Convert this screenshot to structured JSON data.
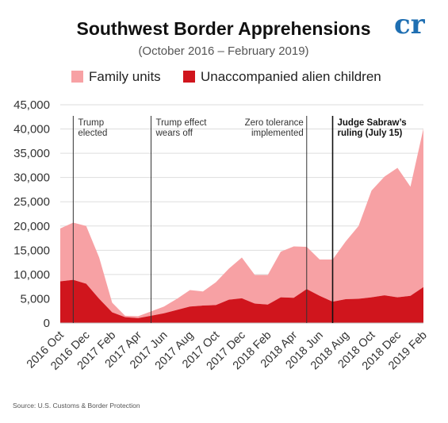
{
  "chart_data": {
    "type": "area",
    "title": "Southwest Border Apprehensions",
    "subtitle": "(October 2016 – February 2019)",
    "ylim": [
      0,
      45000
    ],
    "yticks": [
      "0",
      "5,000",
      "10,000",
      "15,000",
      "20,000",
      "25,000",
      "30,000",
      "35,000",
      "40,000",
      "45,000"
    ],
    "ytick_values": [
      0,
      5000,
      10000,
      15000,
      20000,
      25000,
      30000,
      35000,
      40000,
      45000
    ],
    "grid": "horizontal",
    "stacked": true,
    "x": [
      "2016 Oct",
      "2016 Nov",
      "2016 Dec",
      "2017 Jan",
      "2017 Feb",
      "2017 Mar",
      "2017 Apr",
      "2017 May",
      "2017 Jun",
      "2017 Jul",
      "2017 Aug",
      "2017 Sep",
      "2017 Oct",
      "2017 Nov",
      "2017 Dec",
      "2018 Jan",
      "2018 Feb",
      "2018 Mar",
      "2018 Apr",
      "2018 May",
      "2018 Jun",
      "2018 Jul",
      "2018 Aug",
      "2018 Sep",
      "2018 Oct",
      "2018 Nov",
      "2018 Dec",
      "2019 Jan",
      "2019 Feb"
    ],
    "xtick_labels": [
      "2016 Oct",
      "2016 Dec",
      "2017 Feb",
      "2017 Apr",
      "2017 Jun",
      "2017 Aug",
      "2017 Oct",
      "2017 Dec",
      "2018 Feb",
      "2018 Apr",
      "2018 Jun",
      "2018 Aug",
      "2018 Oct",
      "2018 Dec",
      "2019 Feb"
    ],
    "series": [
      {
        "name": "Unaccompanied alien children",
        "color": "#d0151d",
        "values": [
          8600,
          8900,
          8100,
          5000,
          2200,
          1200,
          1000,
          1500,
          2000,
          2700,
          3400,
          3600,
          3700,
          4800,
          5100,
          4000,
          3800,
          5300,
          5200,
          7000,
          5600,
          4400,
          4900,
          5000,
          5300,
          5700,
          5300,
          5600,
          7400
        ]
      },
      {
        "name": "Family units",
        "color": "#f7a1a4",
        "values": [
          10900,
          11800,
          11900,
          8500,
          2000,
          300,
          400,
          900,
          1400,
          2300,
          3400,
          2900,
          4700,
          6400,
          8400,
          5900,
          6100,
          9400,
          10600,
          8700,
          7500,
          8700,
          11900,
          15000,
          22000,
          24500,
          26700,
          22500,
          32700
        ]
      }
    ],
    "legend": {
      "position": "top"
    },
    "annotations": [
      {
        "lines": [
          "Trump",
          "elected"
        ],
        "x": "2016 Nov",
        "bold": false
      },
      {
        "lines": [
          "Trump effect",
          "wears off"
        ],
        "x": "2017 May",
        "bold": false
      },
      {
        "lines": [
          "Zero tolerance",
          "implemented"
        ],
        "x": "2018 May",
        "bold": false
      },
      {
        "lines": [
          "Judge Sabraw’s",
          "ruling (July 15)"
        ],
        "x": "2018 Jul",
        "bold": true
      }
    ],
    "source": "Source: U.S. Customs & Border Protection",
    "logo": "cr"
  }
}
